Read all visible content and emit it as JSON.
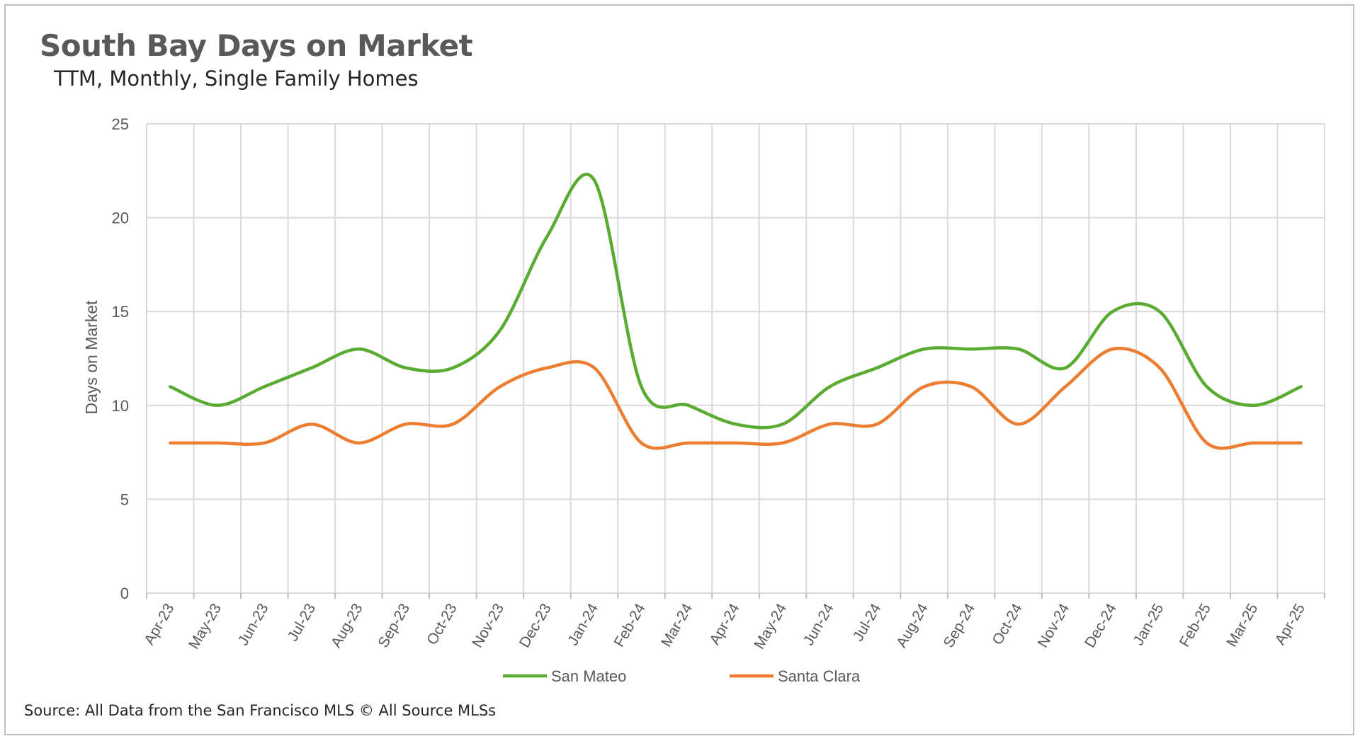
{
  "chart_data": {
    "type": "line",
    "title": "South Bay Days on Market",
    "subtitle": "TTM, Monthly, Single Family Homes",
    "ylabel": "Days on Market",
    "xlabel": "",
    "ylim": [
      0,
      25
    ],
    "yticks": [
      0,
      5,
      10,
      15,
      20,
      25
    ],
    "grid": true,
    "legend_position": "bottom",
    "categories": [
      "Apr-23",
      "May-23",
      "Jun-23",
      "Jul-23",
      "Aug-23",
      "Sep-23",
      "Oct-23",
      "Nov-23",
      "Dec-23",
      "Jan-24",
      "Feb-24",
      "Mar-24",
      "Apr-24",
      "May-24",
      "Jun-24",
      "Jul-24",
      "Aug-24",
      "Sep-24",
      "Oct-24",
      "Nov-24",
      "Dec-24",
      "Jan-25",
      "Feb-25",
      "Mar-25",
      "Apr-25"
    ],
    "series": [
      {
        "name": "San Mateo",
        "color": "#5aab32",
        "values": [
          11,
          10,
          11,
          12,
          13,
          12,
          12,
          14,
          19,
          22,
          11,
          10,
          9,
          9,
          11,
          12,
          13,
          13,
          13,
          12,
          15,
          15,
          11,
          10,
          11
        ]
      },
      {
        "name": "Santa Clara",
        "color": "#ed7d31",
        "values": [
          8,
          8,
          8,
          9,
          8,
          9,
          9,
          11,
          12,
          12,
          8,
          8,
          8,
          8,
          9,
          9,
          11,
          11,
          9,
          11,
          13,
          12,
          8,
          8,
          8
        ]
      }
    ]
  },
  "source": "Source: All Data from the San Francisco MLS © All Source MLSs"
}
